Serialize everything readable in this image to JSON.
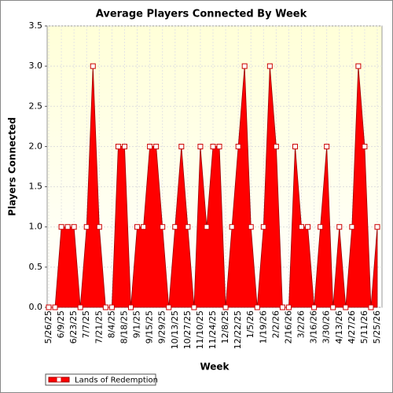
{
  "chart_data": {
    "type": "area",
    "title": "Average Players Connected By Week",
    "x_label": "Week",
    "y_label": "Players Connected",
    "categories": [
      "5/26/25",
      null,
      "6/9/25",
      null,
      "6/23/25",
      null,
      "7/7/25",
      null,
      "7/21/25",
      null,
      "8/4/25",
      null,
      "8/18/25",
      null,
      "9/1/25",
      null,
      "9/15/25",
      null,
      "9/29/25",
      null,
      "10/13/25",
      null,
      "10/27/25",
      null,
      "11/10/25",
      null,
      "11/24/25",
      null,
      "12/8/25",
      null,
      "12/22/25",
      null,
      "1/5/26",
      null,
      "1/19/26",
      null,
      "2/2/26",
      null,
      "2/16/26",
      null,
      "3/2/26",
      null,
      "3/16/26",
      null,
      "3/30/26",
      null,
      "4/13/26",
      null,
      "4/27/26",
      null,
      "5/11/26",
      null,
      "5/25/26"
    ],
    "series": [
      {
        "name": "Lands of Redemption",
        "color": "#ff0000",
        "values": [
          0,
          0,
          1,
          1,
          1,
          0,
          1,
          3,
          1,
          0,
          0,
          2,
          2,
          0,
          1,
          1,
          2,
          2,
          1,
          0,
          1,
          2,
          1,
          0,
          2,
          1,
          2,
          2,
          0,
          1,
          2,
          3,
          1,
          0,
          1,
          3,
          2,
          0,
          0,
          2,
          1,
          1,
          0,
          1,
          2,
          0,
          1,
          0,
          1,
          3,
          2,
          0,
          1
        ]
      }
    ],
    "ylim": [
      0,
      3.5
    ],
    "yticks": [
      {
        "value": 0,
        "label": "0.0"
      },
      0.5,
      {
        "value": 1,
        "label": "1.0"
      },
      1.5,
      {
        "value": 2,
        "label": "2.0"
      },
      2.5,
      {
        "value": 3,
        "label": "3.0"
      },
      3.5
    ],
    "grid": true,
    "legend": "bottom-left"
  }
}
